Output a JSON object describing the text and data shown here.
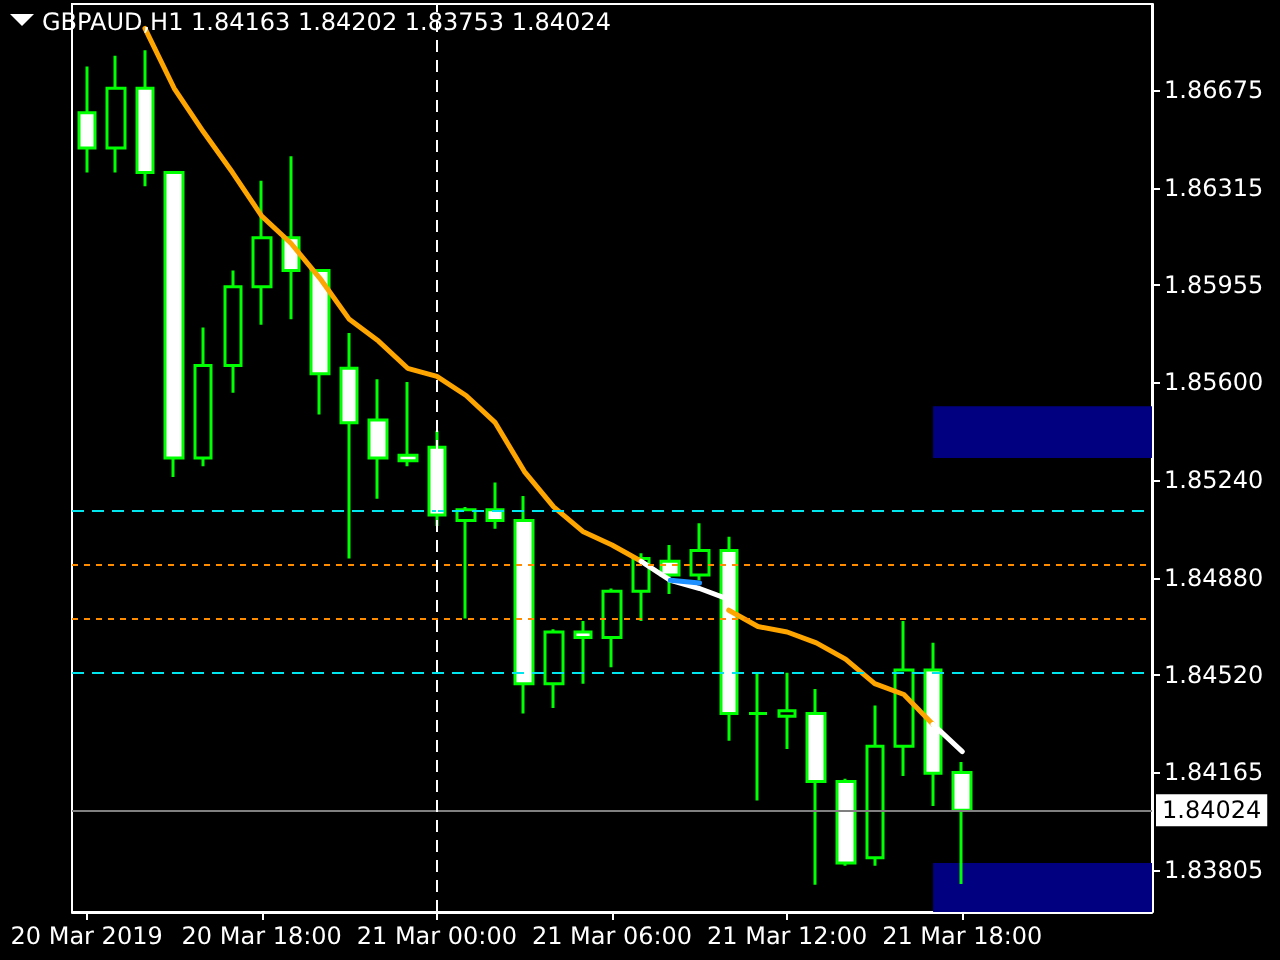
{
  "chart_data": {
    "type": "candlestick",
    "title": "GBPAUD,H1 1.84163 1.84202 1.83753 1.84024",
    "categories": [
      "20 Mar 2019",
      null,
      null,
      null,
      null,
      null,
      "20 Mar 18:00",
      null,
      null,
      null,
      null,
      null,
      "21 Mar 00:00",
      null,
      null,
      null,
      null,
      null,
      "21 Mar 06:00",
      null,
      null,
      null,
      null,
      null,
      "21 Mar 12:00",
      null,
      null,
      null,
      null,
      null,
      "21 Mar 18:00",
      null,
      null,
      null,
      null,
      null,
      null
    ],
    "series": [
      {
        "type": "candlestick",
        "color": "#00ff00",
        "ohlc": [
          [
            1.8659,
            1.8676,
            1.8637,
            1.8646
          ],
          [
            1.8646,
            1.868,
            1.8637,
            1.8668
          ],
          [
            1.8668,
            1.8682,
            1.8632,
            1.8637
          ],
          [
            1.8637,
            1.8637,
            1.8525,
            1.8532
          ],
          [
            1.8532,
            1.858,
            1.8529,
            1.8566
          ],
          [
            1.8566,
            1.8601,
            1.8556,
            1.8595
          ],
          [
            1.8595,
            1.8634,
            1.8581,
            1.8613
          ],
          [
            1.8613,
            1.8643,
            1.8583,
            1.8601
          ],
          [
            1.8601,
            1.8601,
            1.8548,
            1.8563
          ],
          [
            1.8565,
            1.8578,
            1.8495,
            1.8545
          ],
          [
            1.8546,
            1.8561,
            1.8517,
            1.8532
          ],
          [
            1.8533,
            1.856,
            1.8529,
            1.8531
          ],
          [
            1.8536,
            1.8542,
            1.8507,
            1.8511
          ],
          [
            1.8509,
            1.8514,
            1.8473,
            1.8513
          ],
          [
            1.8513,
            1.8523,
            1.8506,
            1.8509
          ],
          [
            1.8509,
            1.8518,
            1.8438,
            1.8449
          ],
          [
            1.8449,
            1.8469,
            1.844,
            1.8468
          ],
          [
            1.8468,
            1.8472,
            1.8449,
            1.8466
          ],
          [
            1.8466,
            1.8484,
            1.8455,
            1.8483
          ],
          [
            1.8483,
            1.8497,
            1.8472,
            1.8495
          ],
          [
            1.8494,
            1.85,
            1.8482,
            1.8489
          ],
          [
            1.8489,
            1.8508,
            1.8487,
            1.8498
          ],
          [
            1.8498,
            1.8503,
            1.8428,
            1.8438
          ],
          [
            1.8438,
            1.8453,
            1.8406,
            1.8438
          ],
          [
            1.8437,
            1.8453,
            1.8425,
            1.8439
          ],
          [
            1.8438,
            1.8447,
            1.8375,
            1.8413
          ],
          [
            1.8413,
            1.8414,
            1.8382,
            1.8383
          ],
          [
            1.8385,
            1.8441,
            1.8382,
            1.8426
          ],
          [
            1.8426,
            1.8472,
            1.8415,
            1.8454
          ],
          [
            1.8454,
            1.8464,
            1.8404,
            1.8416
          ],
          [
            1.84163,
            1.84202,
            1.83753,
            1.84024
          ],
          null,
          null,
          null,
          null,
          null,
          null
        ]
      },
      {
        "type": "line",
        "color": "#ffa500",
        "values": [
          null,
          null,
          1.869,
          1.8668,
          1.8652,
          1.8637,
          1.8621,
          1.8611,
          1.8598,
          1.8583,
          1.8575,
          1.8565,
          1.8562,
          1.8555,
          1.8545,
          1.8527,
          1.8514,
          1.8505,
          1.85,
          1.8494,
          null,
          null,
          1.8476,
          1.847,
          1.8468,
          1.8464,
          1.8458,
          1.8449,
          1.8445,
          1.8434,
          null,
          null,
          null,
          null,
          null,
          null,
          null
        ]
      },
      {
        "type": "line",
        "color": "#ffffff",
        "values": [
          null,
          null,
          null,
          null,
          null,
          null,
          null,
          null,
          null,
          null,
          null,
          null,
          null,
          null,
          null,
          null,
          null,
          null,
          null,
          1.8494,
          1.8487,
          1.8484,
          1.848,
          null,
          null,
          null,
          null,
          null,
          null,
          1.8434,
          1.8424,
          null,
          null,
          null,
          null,
          null,
          null
        ]
      },
      {
        "type": "line",
        "color": "#1e90ff",
        "values": [
          null,
          null,
          null,
          null,
          null,
          null,
          null,
          null,
          null,
          null,
          null,
          null,
          null,
          null,
          null,
          null,
          null,
          null,
          null,
          null,
          1.8487,
          1.8486,
          null,
          null,
          null,
          null,
          null,
          null,
          null,
          null,
          null,
          null,
          null,
          null,
          null,
          null,
          null
        ]
      }
    ],
    "ylim": [
      1.8365,
      1.8699
    ],
    "yticks": [
      1.86675,
      1.86315,
      1.85955,
      {
        "value": 1.856,
        "label": "1.85600"
      },
      {
        "value": 1.8524,
        "label": "1.85240"
      },
      {
        "value": 1.8488,
        "label": "1.84880"
      },
      {
        "value": 1.8452,
        "label": "1.84520"
      },
      1.84165,
      1.83805
    ],
    "ref_lines": [
      {
        "axis": "y",
        "value": 1.8513,
        "label": null,
        "color": "#00e5ee",
        "line_style": "dashed"
      },
      {
        "axis": "y",
        "value": 1.8453,
        "label": null,
        "color": "#00e5ee",
        "line_style": "dashed"
      },
      {
        "axis": "y",
        "value": 1.8493,
        "label": null,
        "color": "#ff8c00",
        "line_style": "dotted"
      },
      {
        "axis": "y",
        "value": 1.8473,
        "label": null,
        "color": "#ff8c00",
        "line_style": "dotted"
      },
      {
        "axis": "y",
        "value": 1.84024,
        "label": "1.84024",
        "color": "#808080",
        "line_style": "solid"
      },
      {
        "axis": "x",
        "value": "21 Mar 00:00",
        "label": null,
        "color": "#ffffff",
        "line_style": "dashed"
      }
    ],
    "bands": [
      {
        "axis": "y",
        "from": 1.8532,
        "to": 1.8551,
        "label": null,
        "color": "#000080"
      },
      {
        "axis": "y",
        "from": 1.8365,
        "to": 1.8383,
        "label": null,
        "color": "#000080"
      }
    ],
    "marker": "none",
    "grid": false
  }
}
